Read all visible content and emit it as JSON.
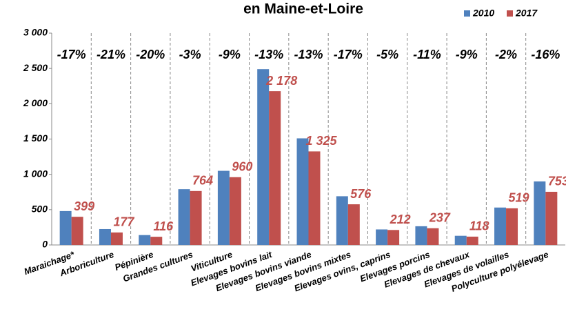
{
  "chart_data": {
    "type": "bar",
    "title": "en Maine-et-Loire",
    "categories": [
      "Maraichage*",
      "Arboriculture",
      "Pépinière",
      "Grandes cultures",
      "Viticulture",
      "Elevages bovins lait",
      "Elevages bovins viande",
      "Elevages bovins mixtes",
      "Elevages ovins, caprins",
      "Elevages porcins",
      "Elevages de chevaux",
      "Elevages de volailles",
      "Polyculture polyélevage"
    ],
    "series": [
      {
        "name": "2010",
        "color": "#4f81bd",
        "values": [
          480,
          225,
          140,
          790,
          1050,
          2490,
          1510,
          690,
          220,
          265,
          130,
          530,
          900
        ]
      },
      {
        "name": "2017",
        "color": "#c0504d",
        "values": [
          399,
          177,
          116,
          764,
          960,
          2178,
          1325,
          576,
          212,
          237,
          118,
          519,
          753
        ],
        "value_labels": [
          "399",
          "177",
          "116",
          "764",
          "960",
          "2 178",
          "1 325",
          "576",
          "212",
          "237",
          "118",
          "519",
          "753"
        ]
      }
    ],
    "annotations": [
      "-17%",
      "-21%",
      "-20%",
      "-3%",
      "-9%",
      "-13%",
      "-13%",
      "-17%",
      "-5%",
      "-11%",
      "-9%",
      "-2%",
      "-16%"
    ],
    "ylim": [
      0,
      3000
    ],
    "yticks": [
      0,
      500,
      {
        "value": 1000,
        "label": "1 000"
      },
      {
        "value": 1500,
        "label": "1 500"
      },
      {
        "value": 2000,
        "label": "2 000"
      },
      {
        "value": 2500,
        "label": "2 500"
      },
      {
        "value": 3000,
        "label": "3 000"
      }
    ],
    "legend": "top-right"
  }
}
